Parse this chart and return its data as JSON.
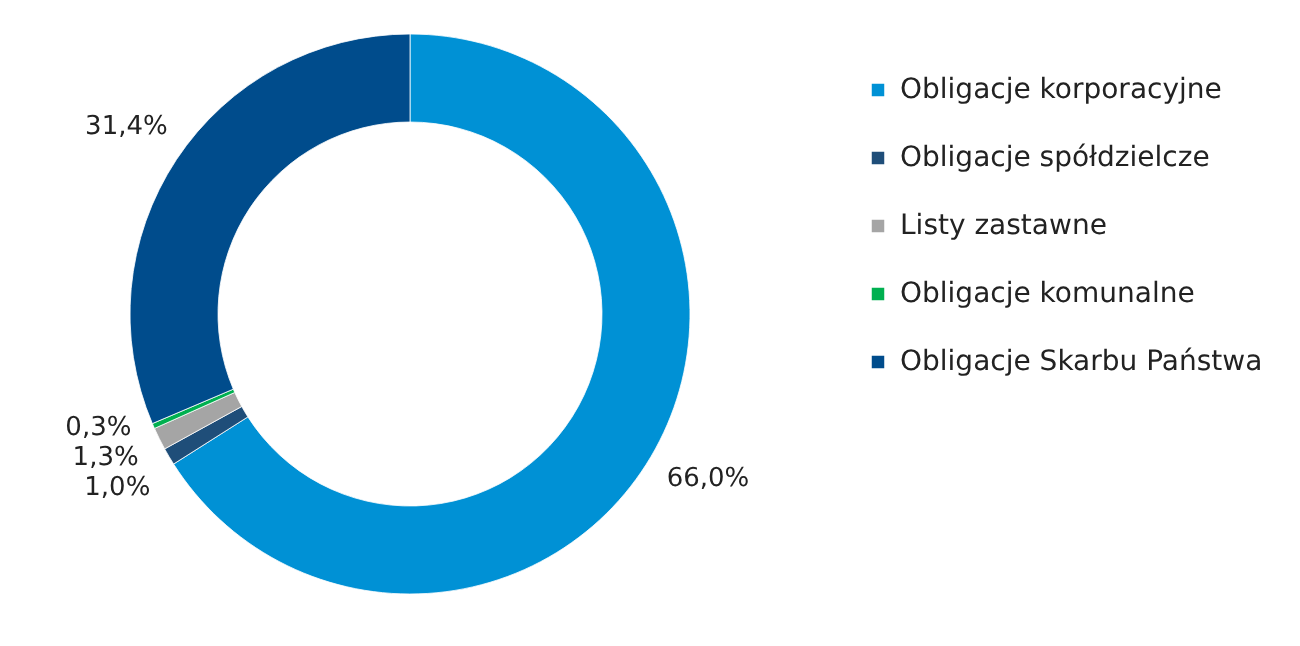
{
  "chart_data": {
    "type": "donut",
    "categories": [
      "Obligacje korporacyjne",
      "Obligacje spółdzielcze",
      "Listy zastawne",
      "Obligacje komunalne",
      "Obligacje Skarbu Państwa"
    ],
    "values": [
      66.0,
      1.0,
      1.3,
      0.3,
      31.4
    ],
    "colors": [
      "#0091d5",
      "#1f4e79",
      "#a5a5a5",
      "#00b050",
      "#004c8c"
    ],
    "value_labels": [
      "66,0%",
      "1,0%",
      "1,3%",
      "0,3%",
      "31,4%"
    ],
    "legend": "right"
  }
}
